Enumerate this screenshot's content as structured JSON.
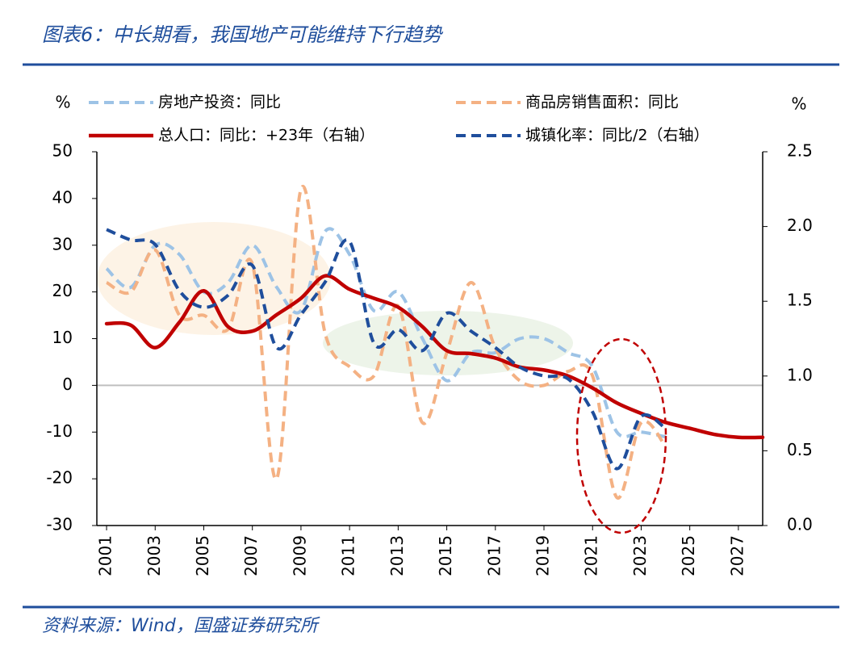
{
  "chart_data": {
    "type": "line",
    "title": "图表6：中长期看，我国地产可能维持下行趋势",
    "source": "资料来源：Wind，国盛证券研究所",
    "y_unit": "%",
    "y2_unit": "%",
    "x": [
      2001,
      2002,
      2003,
      2004,
      2005,
      2006,
      2007,
      2008,
      2009,
      2010,
      2011,
      2012,
      2013,
      2014,
      2015,
      2016,
      2017,
      2018,
      2019,
      2020,
      2021,
      2022,
      2023,
      2024,
      2025,
      2026,
      2027,
      2028
    ],
    "xlim": [
      2000.6,
      2028
    ],
    "xticks": [
      2001,
      2003,
      2005,
      2007,
      2009,
      2011,
      2013,
      2015,
      2017,
      2019,
      2021,
      2023,
      2025,
      2027
    ],
    "ylim": [
      -30,
      50
    ],
    "yticks": [
      -30,
      -20,
      -10,
      0,
      10,
      20,
      30,
      40,
      50
    ],
    "y2lim": [
      0,
      2.5
    ],
    "y2ticks": [
      {
        "value": 0,
        "label": "0.0"
      },
      0.5,
      {
        "value": 1,
        "label": "1.0"
      },
      1.5,
      {
        "value": 2,
        "label": "2.0"
      },
      2.5
    ],
    "grid": false,
    "series": [
      {
        "name": "房地产投资：同比",
        "color": "#9dc3e6",
        "dash": true,
        "axis": "y",
        "values": [
          25,
          21,
          30,
          28,
          20,
          22,
          30,
          21,
          16,
          33,
          28,
          16,
          20,
          10,
          1,
          7,
          7,
          10,
          10,
          7,
          4,
          -10,
          -10,
          -11,
          null,
          null,
          null,
          null
        ]
      },
      {
        "name": "商品房销售面积：同比",
        "color": "#f4b183",
        "dash": true,
        "axis": "y",
        "values": [
          22,
          20,
          29,
          15,
          15,
          12,
          26,
          -20,
          42,
          11,
          4,
          2,
          17,
          -8,
          7,
          22,
          8,
          1,
          0,
          3,
          2,
          -24,
          -8,
          -13,
          null,
          null,
          null,
          null
        ]
      },
      {
        "name": "总人口：同比：+23年（右轴）",
        "color": "#c00000",
        "dash": false,
        "axis": "y2",
        "values": [
          1.35,
          1.34,
          1.19,
          1.36,
          1.57,
          1.33,
          1.3,
          1.41,
          1.52,
          1.67,
          1.58,
          1.52,
          1.46,
          1.33,
          1.17,
          1.15,
          1.12,
          1.06,
          1.04,
          1.0,
          0.92,
          0.82,
          0.75,
          0.69,
          0.65,
          0.61,
          0.59,
          0.59
        ]
      },
      {
        "name": "城镇化率：同比/2（右轴）",
        "color": "#1f4e9c",
        "dash": true,
        "axis": "y2",
        "values": [
          1.98,
          1.91,
          1.88,
          1.57,
          1.46,
          1.54,
          1.74,
          1.19,
          1.41,
          1.63,
          1.9,
          1.22,
          1.31,
          1.17,
          1.42,
          1.3,
          1.19,
          1.06,
          1.0,
          0.98,
          0.76,
          0.38,
          0.73,
          0.65,
          null,
          null,
          null,
          null
        ]
      }
    ]
  }
}
